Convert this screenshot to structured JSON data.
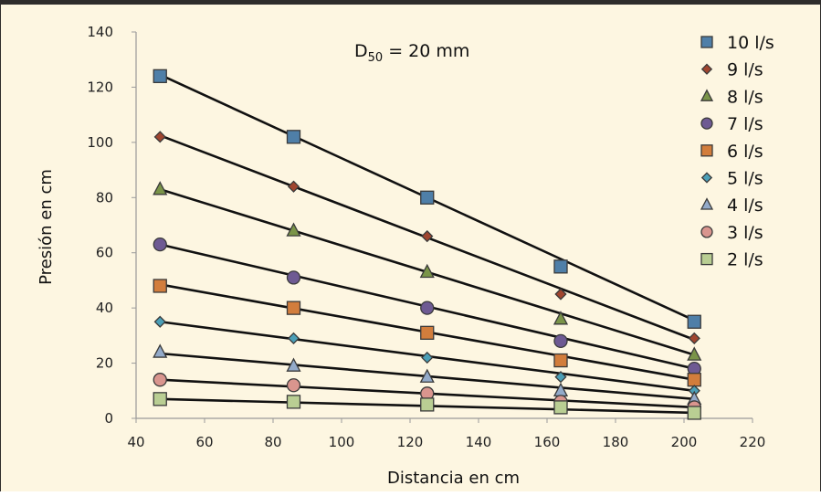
{
  "chart_data": {
    "type": "scatter",
    "title": "",
    "annotation": {
      "prefix": "D",
      "subscript": "50",
      "suffix": " = 20 mm"
    },
    "xlabel": "Distancia en cm",
    "ylabel": "Presión en cm",
    "xlim": [
      40,
      220
    ],
    "ylim": [
      0,
      140
    ],
    "xticks": [
      40,
      60,
      80,
      100,
      120,
      140,
      160,
      180,
      200,
      220
    ],
    "yticks": [
      0,
      20,
      40,
      60,
      80,
      100,
      120,
      140
    ],
    "grid": false,
    "legend_position": "right",
    "x": [
      47,
      86,
      125,
      164,
      203
    ],
    "series": [
      {
        "name": "10 l/s",
        "marker": "square",
        "color": "#4f7fa8",
        "values": [
          124,
          102,
          80,
          55,
          35
        ],
        "trend": [
          124.5,
          35.5
        ]
      },
      {
        "name": "9 l/s",
        "marker": "diamond",
        "color": "#a0452f",
        "values": [
          102,
          84,
          66,
          45,
          29
        ],
        "trend": [
          102.5,
          28.5
        ]
      },
      {
        "name": "8 l/s",
        "marker": "triangle",
        "color": "#7a9448",
        "values": [
          83,
          68,
          53,
          36,
          23
        ],
        "trend": [
          83,
          23
        ]
      },
      {
        "name": "7 l/s",
        "marker": "circle",
        "color": "#6e5a93",
        "values": [
          63,
          51,
          40,
          28,
          18
        ],
        "trend": [
          63,
          18
        ]
      },
      {
        "name": "6 l/s",
        "marker": "square",
        "color": "#d27d3c",
        "values": [
          48,
          40,
          31,
          21,
          14
        ],
        "trend": [
          48.5,
          14
        ]
      },
      {
        "name": "5 l/s",
        "marker": "diamond",
        "color": "#4b9fb7",
        "values": [
          35,
          29,
          22,
          15,
          10
        ],
        "trend": [
          35,
          10
        ]
      },
      {
        "name": "4 l/s",
        "marker": "triangle",
        "color": "#93aac9",
        "values": [
          24,
          19,
          15,
          10,
          7
        ],
        "trend": [
          23.5,
          7
        ]
      },
      {
        "name": "3 l/s",
        "marker": "circle",
        "color": "#d9958e",
        "values": [
          14,
          12,
          9,
          6,
          4
        ],
        "trend": [
          14,
          4
        ]
      },
      {
        "name": "2 l/s",
        "marker": "square",
        "color": "#b9ce93",
        "values": [
          7,
          6,
          5,
          4,
          2
        ],
        "trend": [
          7,
          2
        ]
      }
    ]
  }
}
